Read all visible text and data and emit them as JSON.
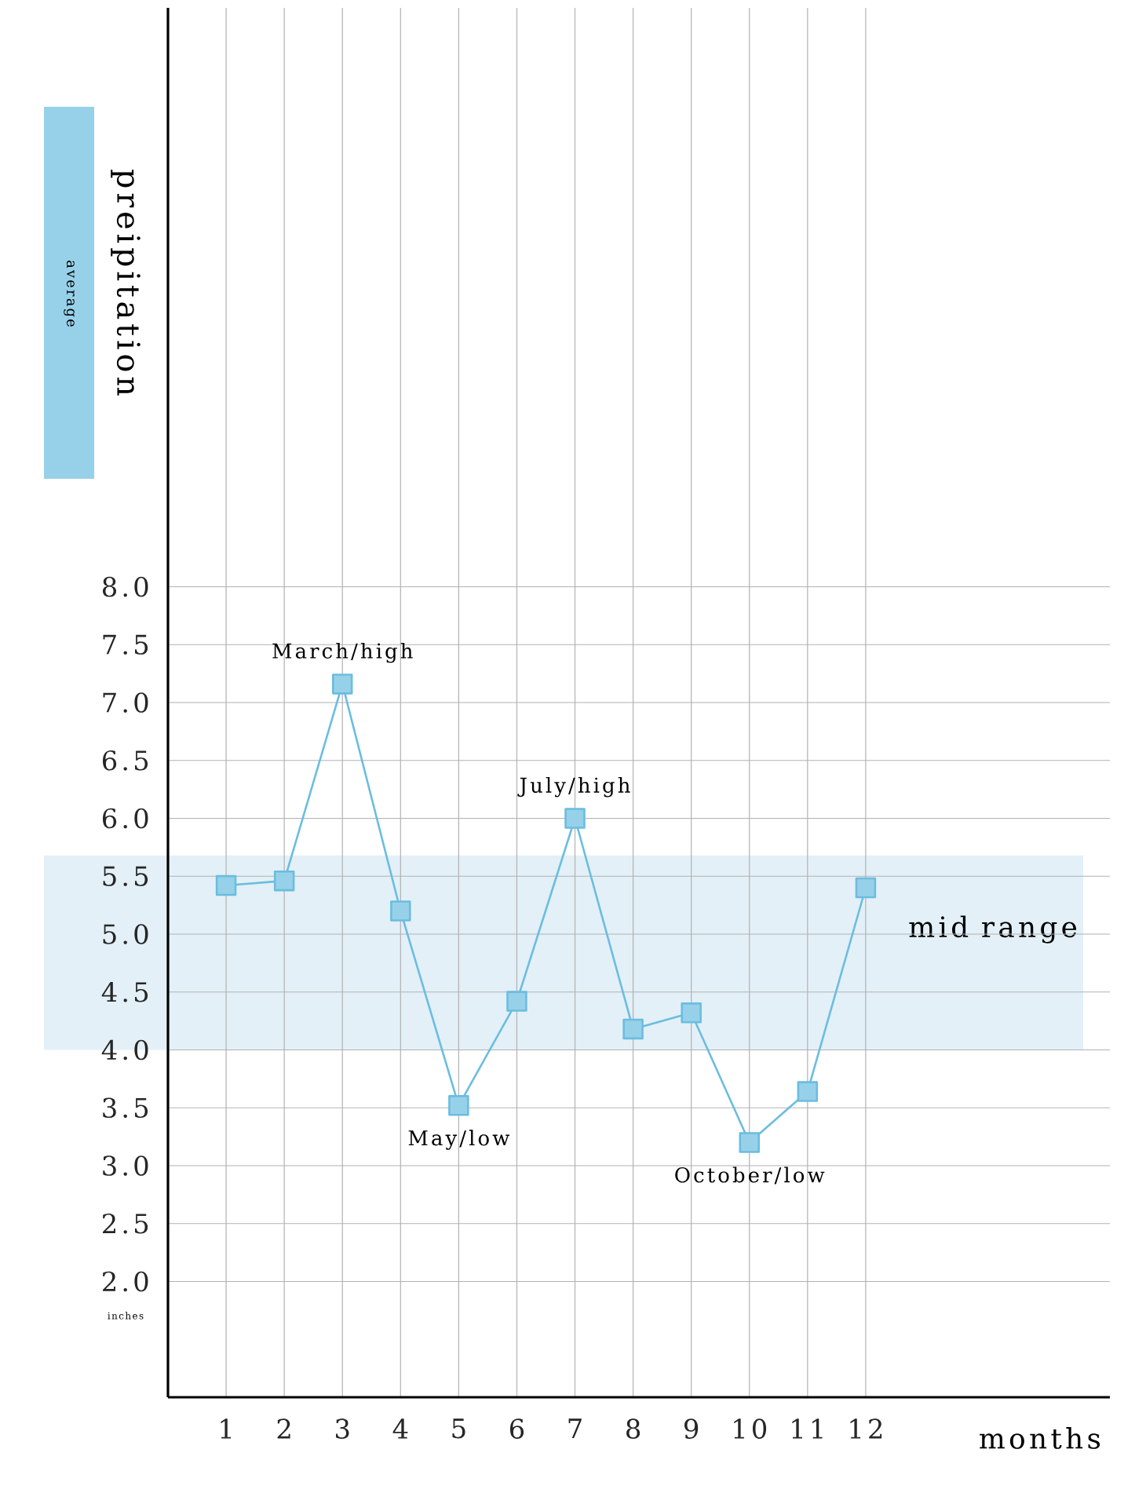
{
  "chart_data": {
    "type": "line",
    "xlabel": "months",
    "ylabel": "preipitation",
    "categories": [
      "1",
      "2",
      "3",
      "4",
      "5",
      "6",
      "7",
      "8",
      "9",
      "10",
      "11",
      "12"
    ],
    "values": [
      5.42,
      5.46,
      7.16,
      5.2,
      3.52,
      4.42,
      6.0,
      4.18,
      4.32,
      3.2,
      3.64,
      5.4
    ],
    "color": "#6bbde0",
    "marker": "square",
    "line_style": "solid",
    "grid": true,
    "ylim": [
      1.0,
      13.0
    ],
    "yticks": [
      {
        "value": 2,
        "label": "2.0"
      },
      2.5,
      {
        "value": 3,
        "label": "3.0"
      },
      3.5,
      {
        "value": 4,
        "label": "4.0"
      },
      4.5,
      {
        "value": 5,
        "label": "5.0"
      },
      5.5,
      {
        "value": 6,
        "label": "6.0"
      },
      6.5,
      {
        "value": 7,
        "label": "7.0"
      },
      7.5,
      {
        "value": 8,
        "label": "8.0"
      }
    ],
    "bands": [
      {
        "axis": "y",
        "from": 4.0,
        "to": 5.68,
        "label": "mid range",
        "color": "#e3f0f7"
      }
    ],
    "annotations": [
      {
        "text": "March/high",
        "x": "3",
        "y": 7.16
      },
      {
        "text": "May/low",
        "x": "5",
        "y": 3.52
      },
      {
        "text": "July/high",
        "x": "7",
        "y": 6.0
      },
      {
        "text": "October/low",
        "x": "10",
        "y": 3.2
      },
      "average",
      "inches"
    ]
  }
}
